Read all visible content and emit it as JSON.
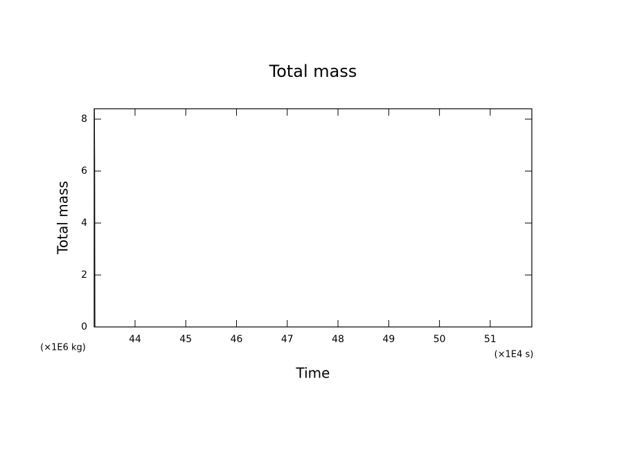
{
  "chart_data": {
    "type": "line",
    "title": "Total mass",
    "x_label": "Time",
    "y_label": "Total mass",
    "x_unit": "(×1E4 s)",
    "y_unit": "(×1E6 kg)",
    "series": [
      {
        "color": "#000000",
        "x": [
          43.2,
          43.205,
          43.21
        ],
        "values": [
          8.4,
          6.3,
          0
        ]
      }
    ],
    "xlim": [
      43.195,
      51.82
    ],
    "xticks": [
      44,
      45,
      46,
      47,
      48,
      49,
      50,
      51
    ],
    "ylim": [
      0,
      8.4
    ],
    "yticks": [
      0,
      2,
      4,
      6,
      8
    ],
    "grid": false
  }
}
